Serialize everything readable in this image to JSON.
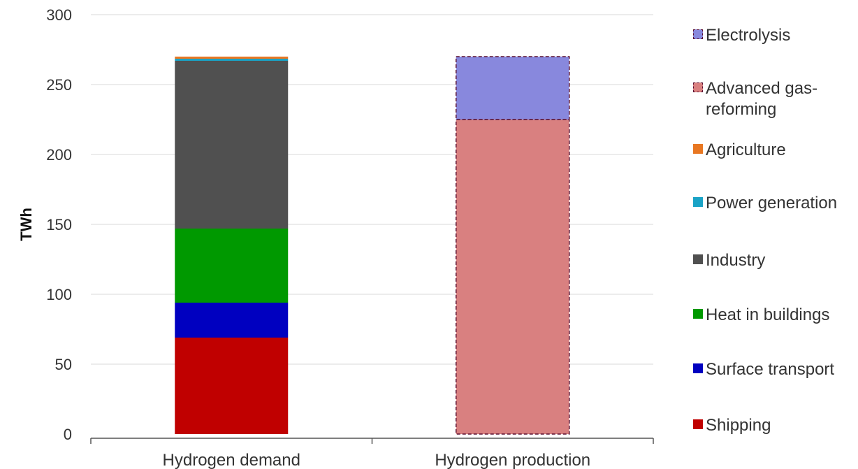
{
  "chart_data": {
    "type": "bar",
    "stacked": true,
    "categories": [
      "Hydrogen demand",
      "Hydrogen production"
    ],
    "ylabel": "TWh",
    "ylim": [
      0,
      300
    ],
    "yticks": [
      0,
      50,
      100,
      150,
      200,
      250,
      300
    ],
    "grid": true,
    "legend_position": "right",
    "series": [
      {
        "name": "Shipping",
        "color": "#c00000",
        "values": [
          69,
          0
        ]
      },
      {
        "name": "Surface transport",
        "color": "#0000c0",
        "values": [
          25,
          0
        ]
      },
      {
        "name": "Heat in buildings",
        "color": "#009900",
        "values": [
          53,
          0
        ]
      },
      {
        "name": "Industry",
        "color": "#505050",
        "values": [
          120,
          0
        ]
      },
      {
        "name": "Power generation",
        "color": "#1aa3c6",
        "values": [
          1.5,
          0
        ]
      },
      {
        "name": "Agriculture",
        "color": "#e87722",
        "values": [
          1.5,
          0
        ]
      },
      {
        "name": "Advanced gas-reforming",
        "color": "#d98080",
        "pattern": "dashed",
        "values": [
          0,
          225
        ]
      },
      {
        "name": "Electrolysis",
        "color": "#8888dd",
        "pattern": "dashed",
        "values": [
          0,
          45
        ]
      }
    ],
    "legend_order": [
      "Electrolysis",
      "Advanced gas-reforming",
      "Agriculture",
      "Power generation",
      "Industry",
      "Heat in buildings",
      "Surface transport",
      "Shipping"
    ]
  }
}
